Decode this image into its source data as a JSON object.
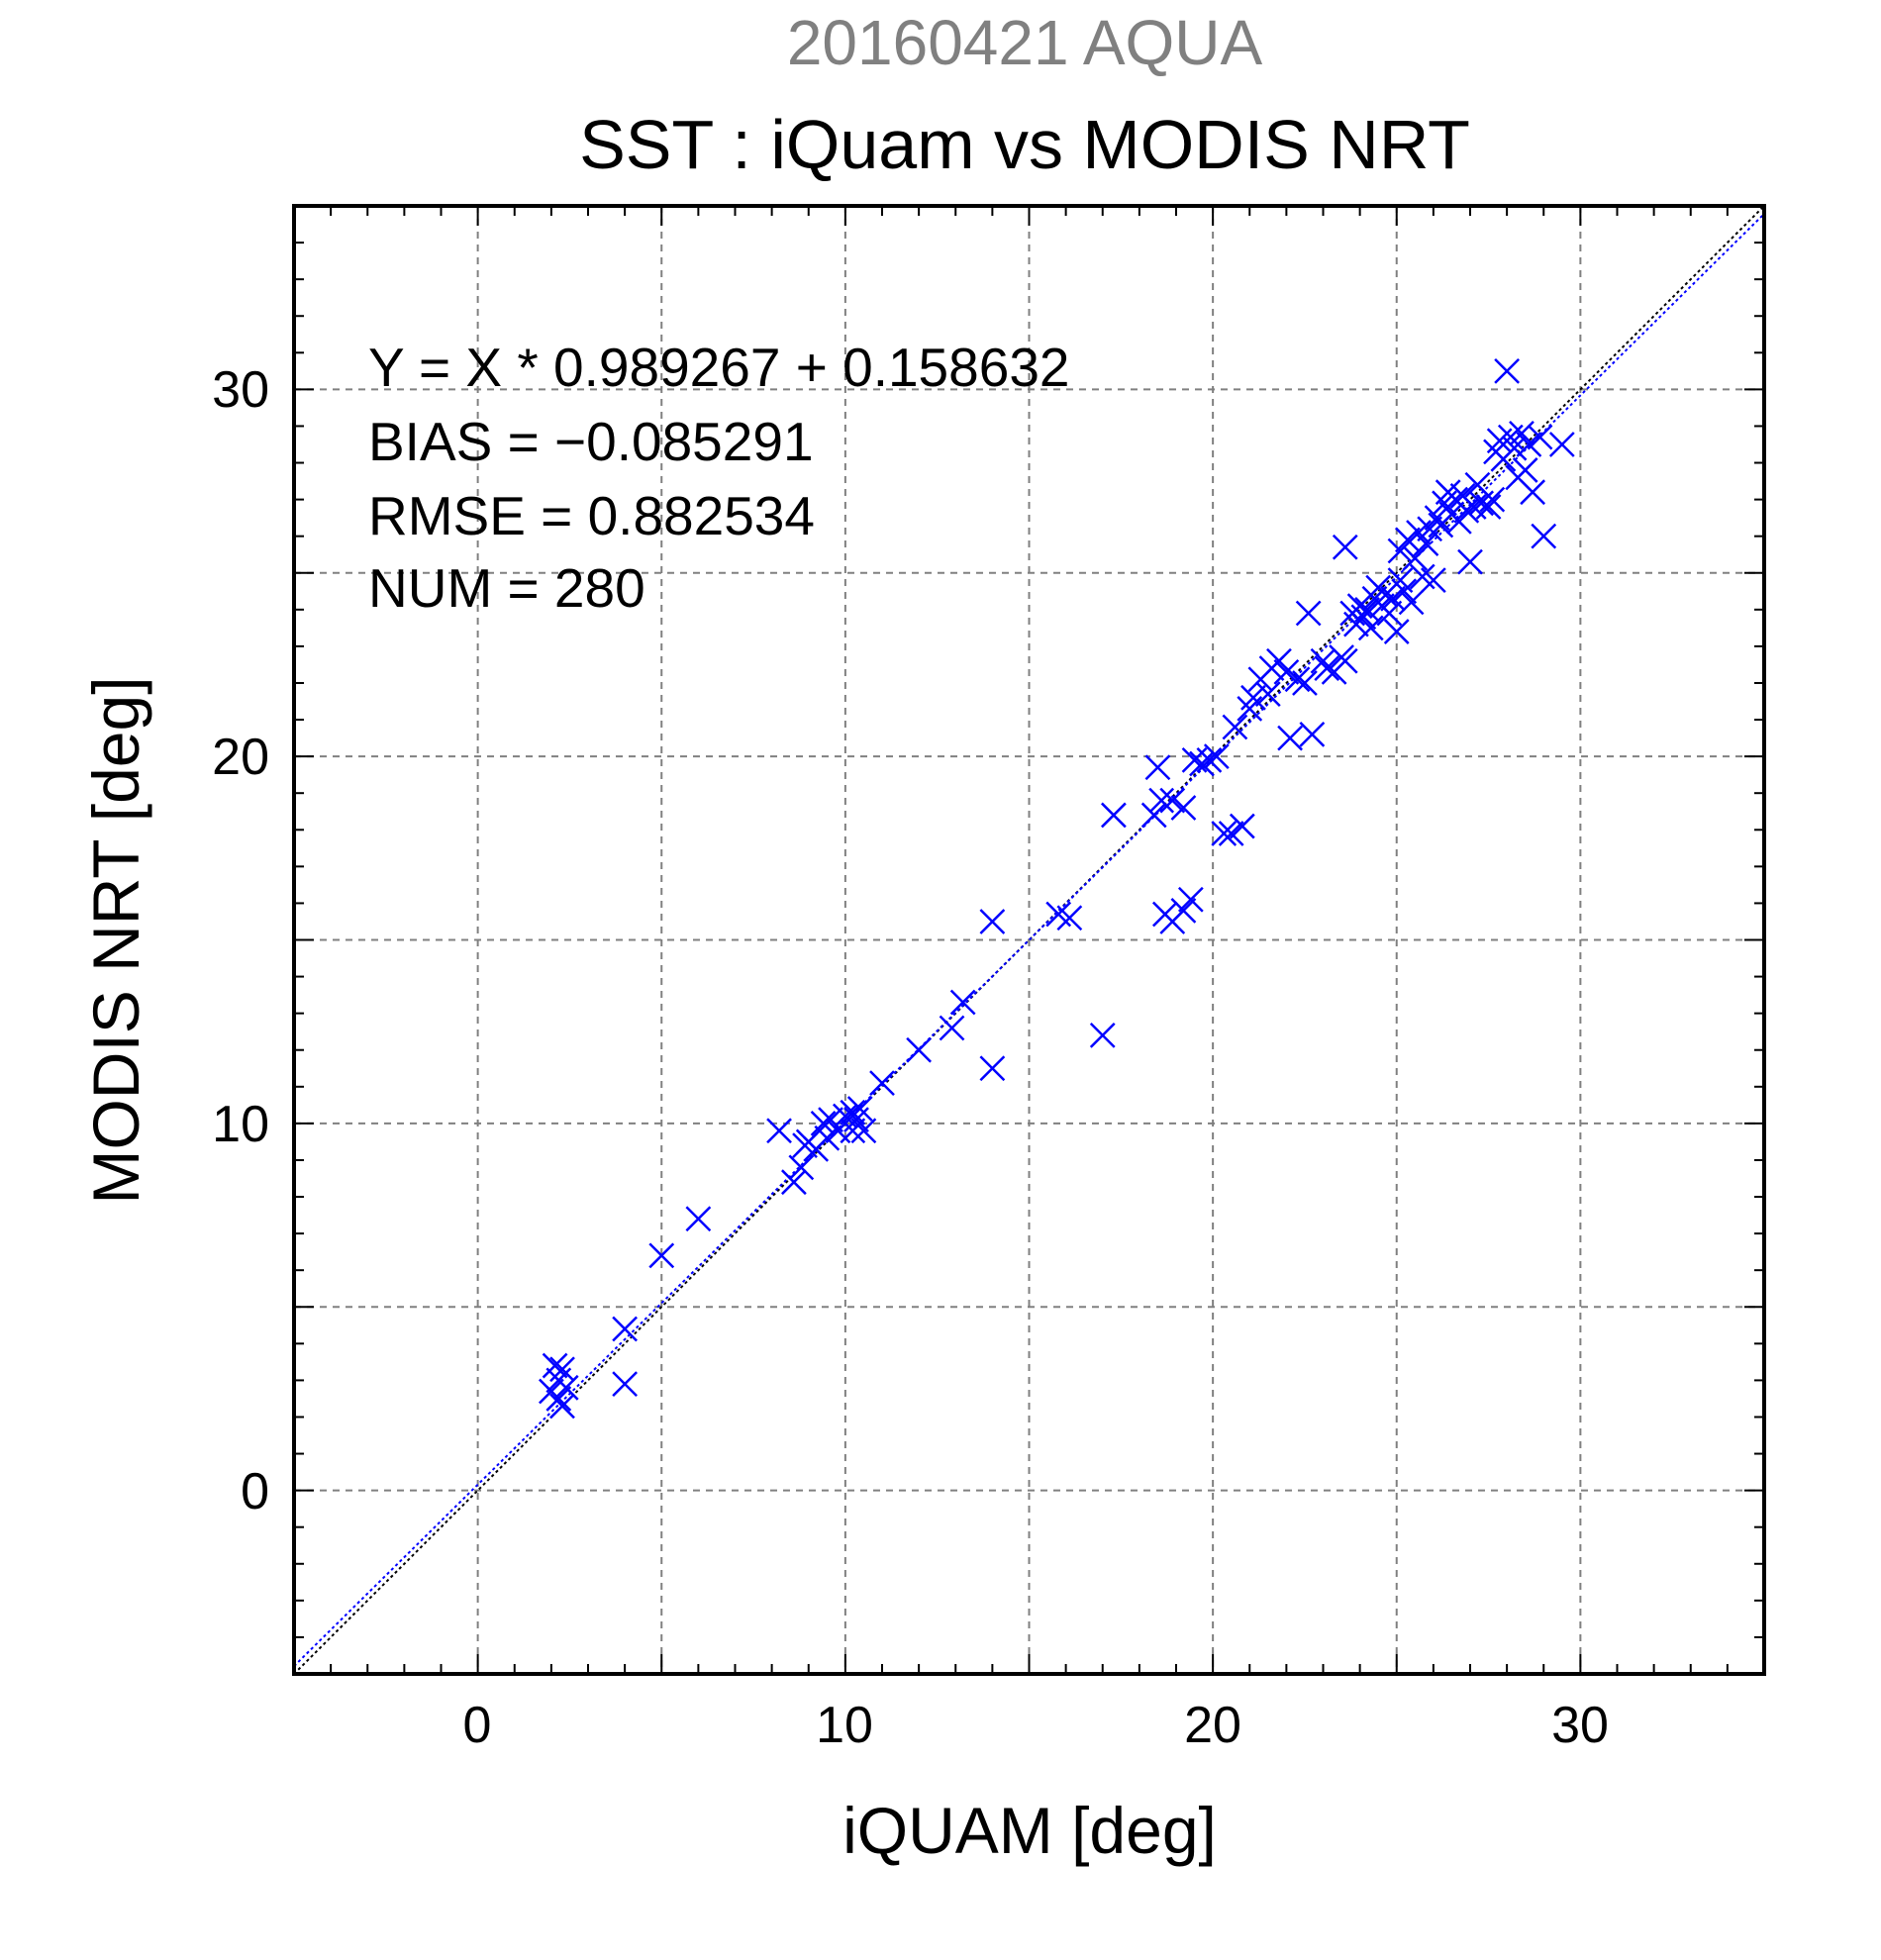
{
  "chart_data": {
    "type": "scatter",
    "subtitle": "20160421 AQUA",
    "title": "SST : iQuam vs MODIS NRT",
    "xlabel": "iQUAM [deg]",
    "ylabel": "MODIS NRT [deg]",
    "xlim": [
      -5,
      35
    ],
    "ylim": [
      -5,
      35
    ],
    "xticks": [
      "0",
      "10",
      "20",
      "30"
    ],
    "yticks": [
      "0",
      "10",
      "20",
      "30"
    ],
    "grid": true,
    "marker": "x",
    "marker_color": "#0000ff",
    "stats": {
      "equation": "Y = X * 0.989267 + 0.158632",
      "bias": "BIAS = −0.085291",
      "rmse": "RMSE = 0.882534",
      "num": "NUM = 280"
    },
    "lines": [
      {
        "kind": "one-to-one",
        "slope": 1,
        "intercept": 0,
        "color": "#000000",
        "style": "dotted"
      },
      {
        "kind": "regression",
        "slope": 0.989267,
        "intercept": 0.158632,
        "color": "#0000ff",
        "style": "dotted"
      }
    ],
    "points": [
      [
        2.1,
        3.4
      ],
      [
        2.3,
        3.3
      ],
      [
        2.2,
        3.0
      ],
      [
        2.4,
        2.8
      ],
      [
        2.2,
        2.5
      ],
      [
        2.3,
        2.3
      ],
      [
        2.0,
        2.7
      ],
      [
        4.0,
        4.4
      ],
      [
        4.0,
        2.9
      ],
      [
        5.0,
        6.4
      ],
      [
        6.0,
        7.4
      ],
      [
        8.2,
        9.8
      ],
      [
        8.6,
        8.4
      ],
      [
        8.8,
        8.8
      ],
      [
        8.9,
        9.4
      ],
      [
        9.0,
        9.5
      ],
      [
        9.2,
        9.3
      ],
      [
        9.4,
        10.0
      ],
      [
        9.5,
        9.6
      ],
      [
        9.6,
        10.1
      ],
      [
        9.8,
        9.8
      ],
      [
        10.0,
        10.2
      ],
      [
        10.2,
        10.3
      ],
      [
        10.3,
        10.1
      ],
      [
        10.4,
        10.4
      ],
      [
        10.2,
        9.8
      ],
      [
        10.5,
        9.8
      ],
      [
        11.0,
        11.1
      ],
      [
        12.0,
        12.0
      ],
      [
        12.9,
        12.6
      ],
      [
        13.2,
        13.3
      ],
      [
        14.0,
        15.5
      ],
      [
        14.0,
        11.5
      ],
      [
        15.8,
        15.7
      ],
      [
        16.1,
        15.6
      ],
      [
        17.0,
        12.4
      ],
      [
        17.3,
        18.4
      ],
      [
        18.4,
        18.4
      ],
      [
        18.5,
        19.7
      ],
      [
        18.6,
        18.8
      ],
      [
        18.7,
        15.7
      ],
      [
        18.9,
        18.8
      ],
      [
        18.9,
        15.5
      ],
      [
        19.2,
        18.6
      ],
      [
        19.2,
        15.8
      ],
      [
        19.4,
        16.1
      ],
      [
        19.5,
        19.9
      ],
      [
        19.7,
        19.8
      ],
      [
        19.9,
        19.9
      ],
      [
        20.1,
        20.0
      ],
      [
        20.3,
        17.9
      ],
      [
        20.5,
        17.9
      ],
      [
        20.6,
        20.8
      ],
      [
        20.8,
        18.1
      ],
      [
        21.0,
        21.3
      ],
      [
        21.1,
        21.6
      ],
      [
        21.3,
        22.1
      ],
      [
        21.5,
        21.7
      ],
      [
        21.6,
        22.4
      ],
      [
        21.8,
        22.6
      ],
      [
        22.0,
        22.3
      ],
      [
        22.1,
        20.5
      ],
      [
        22.3,
        22.1
      ],
      [
        22.5,
        22.0
      ],
      [
        22.6,
        23.9
      ],
      [
        22.7,
        20.6
      ],
      [
        23.0,
        22.6
      ],
      [
        23.1,
        22.4
      ],
      [
        23.3,
        22.3
      ],
      [
        23.5,
        22.7
      ],
      [
        23.6,
        22.6
      ],
      [
        23.6,
        25.7
      ],
      [
        23.8,
        23.9
      ],
      [
        23.9,
        23.6
      ],
      [
        24.0,
        24.1
      ],
      [
        24.1,
        23.8
      ],
      [
        24.2,
        24.0
      ],
      [
        24.3,
        23.5
      ],
      [
        24.4,
        24.3
      ],
      [
        24.5,
        24.6
      ],
      [
        24.6,
        24.1
      ],
      [
        24.7,
        24.4
      ],
      [
        24.8,
        23.9
      ],
      [
        24.9,
        24.3
      ],
      [
        25.0,
        23.4
      ],
      [
        25.1,
        24.8
      ],
      [
        25.1,
        25.6
      ],
      [
        25.2,
        24.5
      ],
      [
        25.3,
        25.9
      ],
      [
        25.4,
        24.2
      ],
      [
        25.5,
        25.4
      ],
      [
        25.6,
        26.1
      ],
      [
        25.7,
        24.9
      ],
      [
        25.8,
        25.8
      ],
      [
        25.9,
        26.2
      ],
      [
        26.0,
        24.8
      ],
      [
        26.1,
        26.5
      ],
      [
        26.2,
        26.3
      ],
      [
        26.3,
        26.9
      ],
      [
        26.4,
        27.2
      ],
      [
        26.5,
        26.6
      ],
      [
        26.6,
        27.0
      ],
      [
        26.7,
        26.4
      ],
      [
        26.8,
        27.1
      ],
      [
        26.9,
        26.7
      ],
      [
        27.0,
        25.3
      ],
      [
        27.1,
        26.8
      ],
      [
        27.2,
        27.4
      ],
      [
        27.3,
        26.9
      ],
      [
        27.5,
        26.8
      ],
      [
        27.6,
        27.0
      ],
      [
        27.7,
        28.3
      ],
      [
        27.8,
        28.6
      ],
      [
        27.9,
        28.1
      ],
      [
        28.0,
        30.5
      ],
      [
        28.1,
        28.7
      ],
      [
        28.2,
        28.4
      ],
      [
        28.3,
        27.6
      ],
      [
        28.4,
        28.8
      ],
      [
        28.5,
        27.8
      ],
      [
        28.6,
        28.5
      ],
      [
        28.7,
        27.2
      ],
      [
        28.9,
        28.7
      ],
      [
        29.0,
        26.0
      ],
      [
        29.5,
        28.5
      ]
    ]
  }
}
